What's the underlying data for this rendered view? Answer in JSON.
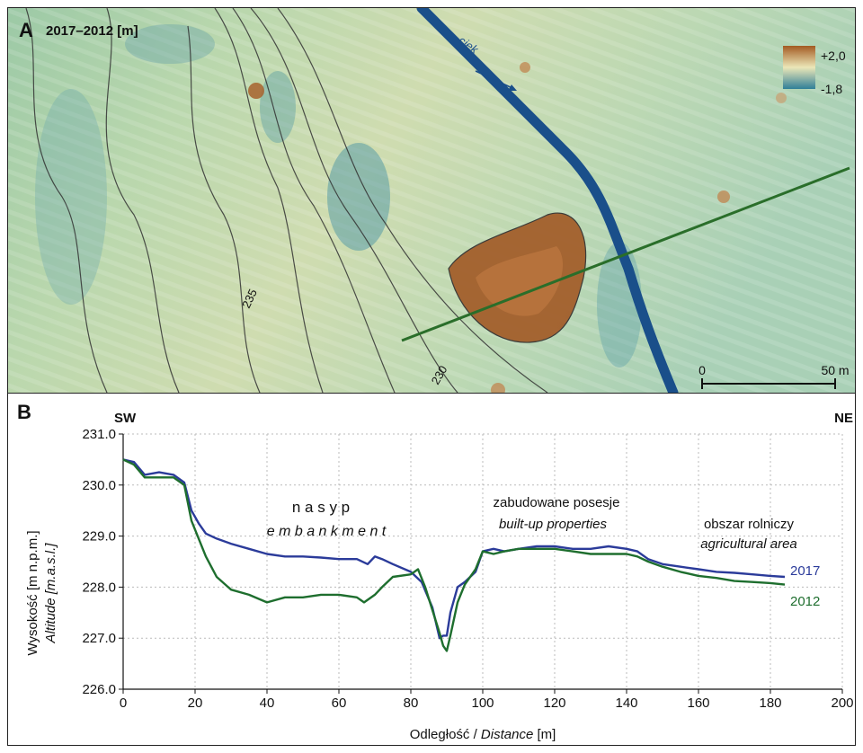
{
  "panel_a": {
    "letter": "A",
    "title": "2017–2012 [m]",
    "stream_label": "ciek",
    "legend_max": "+2,0",
    "legend_min": "-1,8",
    "contour_label_1": "235",
    "contour_label_2": "230",
    "scale_start": "0",
    "scale_end": "50 m",
    "colors": {
      "raise": "#a05a23",
      "lower": "#2f7f98",
      "neutral": "#d7dfb0",
      "stream": "#1a4f8a",
      "profile": "#2a6e2a"
    }
  },
  "panel_b": {
    "letter": "B",
    "left_end": "SW",
    "right_end": "NE",
    "label_nasyp": "n a s y p",
    "label_embankment": "e m b a n k m e n t",
    "label_zabudowane": "zabudowane  posesje",
    "label_builtup": "built-up properties",
    "label_obszar": "obszar rolniczy",
    "label_agricultural": "agricultural area"
  },
  "chart_data": {
    "type": "line",
    "xlabel_pl": "Odległość / ",
    "xlabel_en": "Distance",
    "xlabel_unit": " [m]",
    "ylabel_pl": "Wysokość [m n.p.m.]",
    "ylabel_en": "Altitude [m.a.s.l.]",
    "xlim": [
      0,
      200
    ],
    "ylim": [
      226.0,
      231.0
    ],
    "xticks": [
      "0",
      "20",
      "40",
      "60",
      "80",
      "100",
      "120",
      "140",
      "160",
      "180",
      "200"
    ],
    "yticks": [
      "226.0",
      "227.0",
      "228.0",
      "229.0",
      "230.0",
      "231.0"
    ],
    "grid": true,
    "series": [
      {
        "name": "2017",
        "color": "#2b3b9a",
        "x": [
          0,
          3,
          6,
          10,
          14,
          17,
          19,
          21,
          23,
          26,
          30,
          35,
          40,
          45,
          50,
          55,
          60,
          65,
          68,
          70,
          72,
          75,
          80,
          83,
          86,
          88,
          89,
          90,
          91,
          93,
          95,
          98,
          100,
          103,
          106,
          110,
          115,
          120,
          125,
          130,
          135,
          140,
          143,
          146,
          150,
          155,
          160,
          165,
          170,
          175,
          180,
          184
        ],
        "y": [
          230.5,
          230.45,
          230.2,
          230.25,
          230.2,
          230.05,
          229.5,
          229.25,
          229.05,
          228.95,
          228.85,
          228.75,
          228.65,
          228.6,
          228.6,
          228.58,
          228.55,
          228.55,
          228.45,
          228.6,
          228.55,
          228.45,
          228.3,
          228.1,
          227.6,
          227.0,
          227.05,
          227.05,
          227.5,
          228.0,
          228.1,
          228.3,
          228.7,
          228.75,
          228.7,
          228.75,
          228.8,
          228.8,
          228.75,
          228.75,
          228.8,
          228.75,
          228.7,
          228.55,
          228.45,
          228.4,
          228.35,
          228.3,
          228.28,
          228.25,
          228.22,
          228.2
        ]
      },
      {
        "name": "2012",
        "color": "#1e6e2e",
        "x": [
          0,
          3,
          6,
          10,
          14,
          17,
          19,
          21,
          23,
          26,
          30,
          35,
          40,
          45,
          50,
          55,
          60,
          65,
          67,
          70,
          72,
          75,
          80,
          82,
          84,
          86,
          88,
          89,
          90,
          91,
          93,
          95,
          98,
          100,
          103,
          106,
          110,
          115,
          120,
          125,
          130,
          135,
          140,
          143,
          146,
          150,
          155,
          160,
          165,
          170,
          175,
          180,
          184
        ],
        "y": [
          230.5,
          230.4,
          230.15,
          230.15,
          230.15,
          230.0,
          229.3,
          228.95,
          228.6,
          228.2,
          227.95,
          227.85,
          227.7,
          227.8,
          227.8,
          227.85,
          227.85,
          227.8,
          227.7,
          227.85,
          228.0,
          228.2,
          228.25,
          228.35,
          228.0,
          227.55,
          227.1,
          226.85,
          226.75,
          227.05,
          227.7,
          228.05,
          228.35,
          228.7,
          228.65,
          228.7,
          228.75,
          228.75,
          228.75,
          228.7,
          228.65,
          228.65,
          228.65,
          228.6,
          228.5,
          228.4,
          228.3,
          228.22,
          228.18,
          228.12,
          228.1,
          228.08,
          228.05
        ]
      }
    ]
  }
}
